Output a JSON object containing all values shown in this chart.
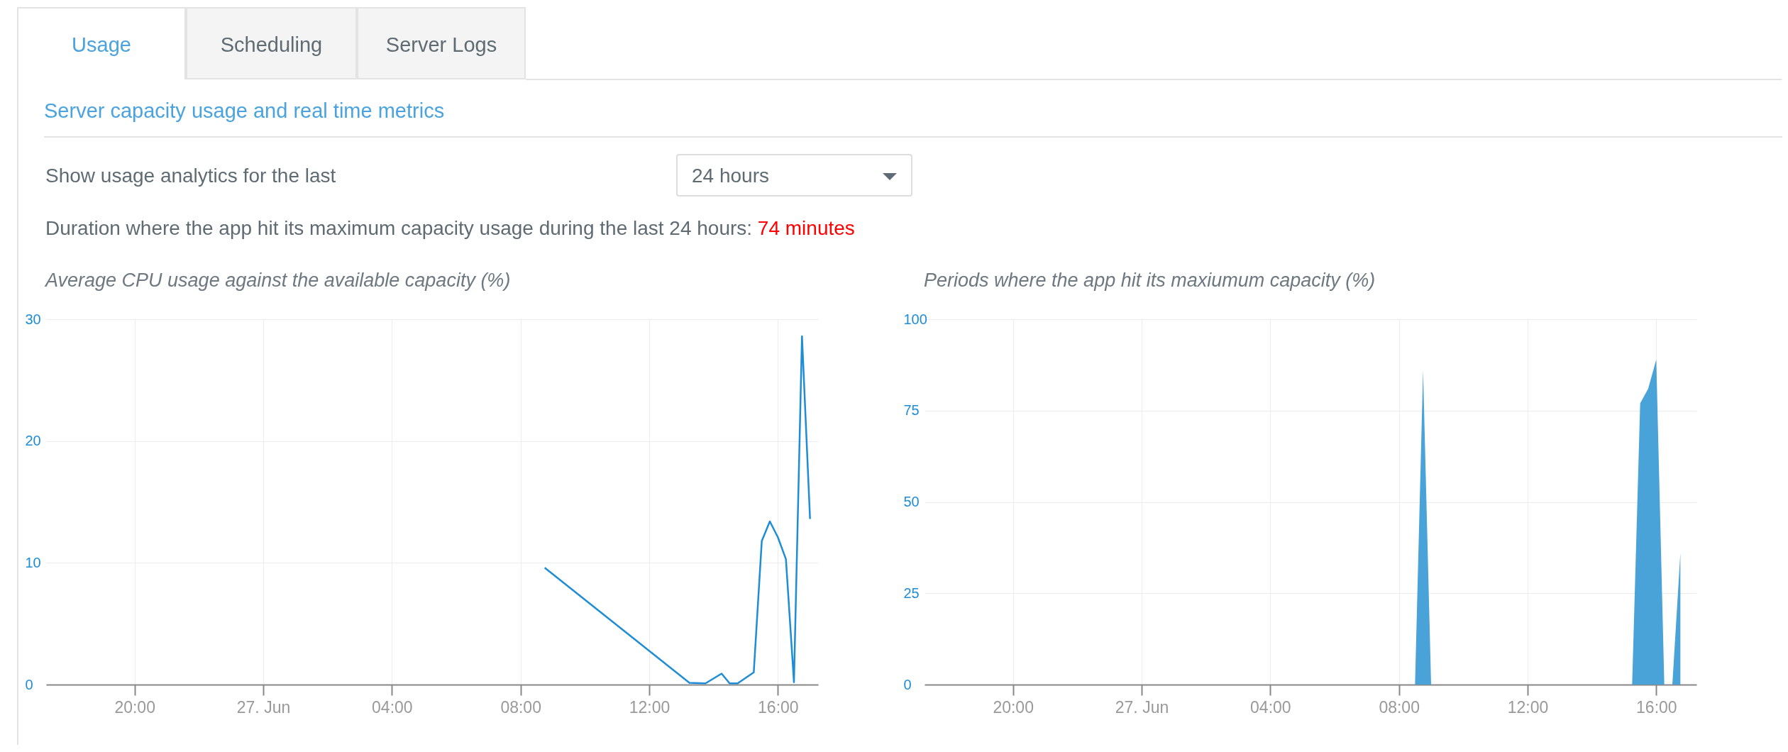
{
  "chart_data": [
    {
      "type": "other",
      "title": "Server capacity usage and real time metrics",
      "annotations": [
        "Usage",
        "Scheduling",
        "Server Logs",
        "Show usage analytics for the last",
        "24 hours",
        "Duration where the app hit its maximum capacity usage during the last 24 hours:",
        "74 minutes"
      ]
    },
    {
      "type": "line",
      "title": "Average CPU usage against the available capacity (%)",
      "color": "#1f8dd6",
      "x": [
        "--06-27T08:45",
        "--06-27T13:15",
        "--06-27T13:45",
        "--06-27T14:15",
        "--06-27T14:30",
        "--06-27T14:45",
        "--06-27T15:15",
        "--06-27T15:30",
        "--06-27T15:45",
        "--06-27T16:00",
        "--06-27T16:15",
        "--06-27T16:30",
        "--06-27T16:45",
        "--06-27T17:00"
      ],
      "values": [
        9.6,
        0.15,
        0.1,
        0.9,
        0.1,
        0.1,
        1.0,
        11.8,
        13.4,
        12.1,
        10.3,
        0.2,
        28.6,
        13.6
      ],
      "xlim": [
        "--06-26T17:15",
        "--06-27T17:15"
      ],
      "xticks": [
        {
          "value": "--06-26T20:00",
          "label": "20:00"
        },
        {
          "value": "--06-27T00:00",
          "label": "27. Jun"
        },
        {
          "value": "--06-27T04:00",
          "label": "04:00"
        },
        {
          "value": "--06-27T08:00",
          "label": "08:00"
        },
        {
          "value": "--06-27T12:00",
          "label": "12:00"
        },
        {
          "value": "--06-27T16:00",
          "label": "16:00"
        }
      ],
      "ylim": [
        0,
        30
      ],
      "yticks": [
        0,
        10,
        20,
        30
      ],
      "grid": true
    },
    {
      "type": "area",
      "title": "Periods where the app hit its maxiumum capacity (%)",
      "color": "#4aa3d8",
      "x": [
        "--06-27T08:30",
        "--06-27T08:45",
        "--06-27T09:00",
        "--06-27T15:15",
        "--06-27T15:30",
        "--06-27T15:45",
        "--06-27T16:00",
        "--06-27T16:15",
        "--06-27T16:30",
        "--06-27T16:45"
      ],
      "values": [
        0,
        86,
        0,
        0,
        77,
        81,
        89,
        0,
        0,
        36
      ],
      "xlim": [
        "--06-26T17:15",
        "--06-27T17:15"
      ],
      "xticks": [
        {
          "value": "--06-26T20:00",
          "label": "20:00"
        },
        {
          "value": "--06-27T00:00",
          "label": "27. Jun"
        },
        {
          "value": "--06-27T04:00",
          "label": "04:00"
        },
        {
          "value": "--06-27T08:00",
          "label": "08:00"
        },
        {
          "value": "--06-27T12:00",
          "label": "12:00"
        },
        {
          "value": "--06-27T16:00",
          "label": "16:00"
        }
      ],
      "ylim": [
        0,
        100
      ],
      "yticks": [
        0,
        25,
        50,
        75,
        100
      ],
      "grid": true
    }
  ]
}
